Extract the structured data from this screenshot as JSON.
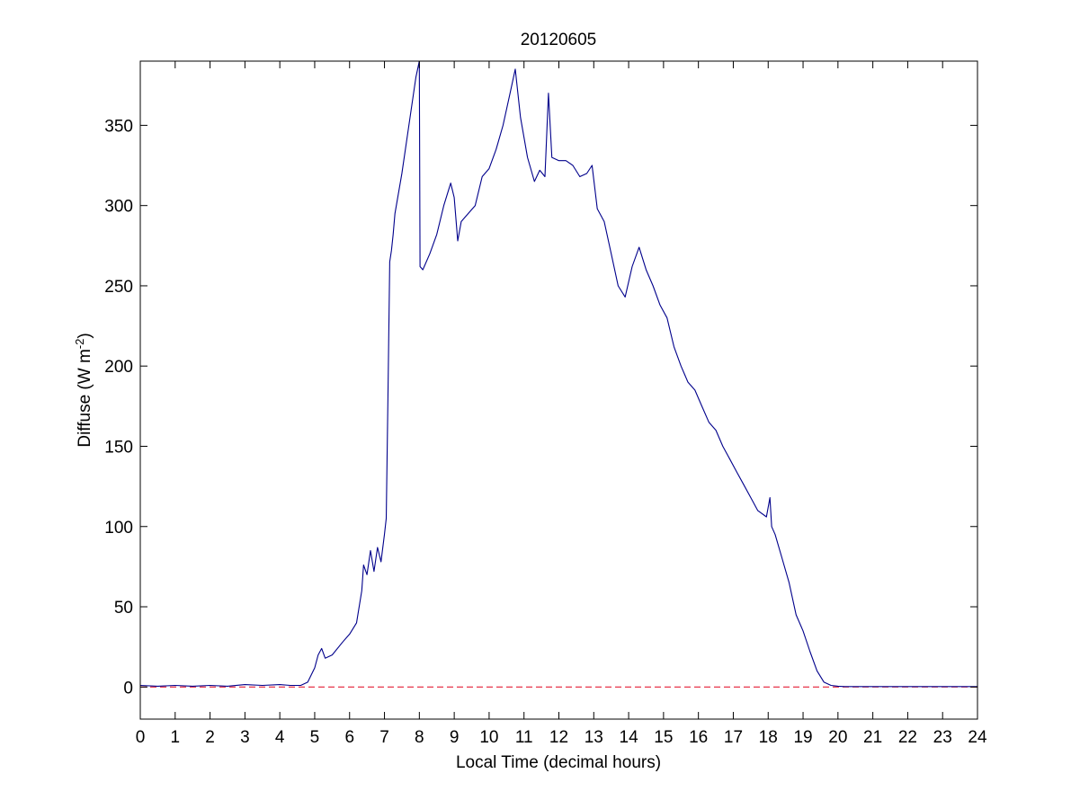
{
  "chart_data": {
    "type": "line",
    "title": "20120605",
    "xlabel": "Local Time (decimal hours)",
    "ylabel_main": "Diffuse (W m",
    "ylabel_exp": "-2",
    "ylabel_close": ")",
    "xlim": [
      0,
      24
    ],
    "ylim": [
      -20,
      390
    ],
    "xticks": [
      0,
      1,
      2,
      3,
      4,
      5,
      6,
      7,
      8,
      9,
      10,
      11,
      12,
      13,
      14,
      15,
      16,
      17,
      18,
      19,
      20,
      21,
      22,
      23,
      24
    ],
    "yticks": [
      0,
      50,
      100,
      150,
      200,
      250,
      300,
      350
    ],
    "grid": false,
    "series": [
      {
        "color": "#00008b",
        "x": [
          0.0,
          0.5,
          1.0,
          1.5,
          2.0,
          2.5,
          3.0,
          3.5,
          4.0,
          4.3,
          4.6,
          4.8,
          5.0,
          5.1,
          5.2,
          5.3,
          5.5,
          5.8,
          6.0,
          6.2,
          6.35,
          6.4,
          6.5,
          6.6,
          6.7,
          6.8,
          6.9,
          7.0,
          7.05,
          7.1,
          7.15,
          7.2,
          7.25,
          7.3,
          7.5,
          7.7,
          7.9,
          8.0,
          8.02,
          8.1,
          8.3,
          8.5,
          8.7,
          8.9,
          9.0,
          9.1,
          9.2,
          9.4,
          9.6,
          9.8,
          10.0,
          10.2,
          10.4,
          10.6,
          10.75,
          10.9,
          11.1,
          11.3,
          11.45,
          11.6,
          11.7,
          11.8,
          12.0,
          12.2,
          12.4,
          12.6,
          12.8,
          12.95,
          13.1,
          13.3,
          13.5,
          13.7,
          13.9,
          14.1,
          14.3,
          14.5,
          14.7,
          14.9,
          15.1,
          15.3,
          15.5,
          15.7,
          15.9,
          16.1,
          16.3,
          16.5,
          16.7,
          16.9,
          17.1,
          17.3,
          17.5,
          17.7,
          17.95,
          18.05,
          18.1,
          18.2,
          18.4,
          18.6,
          18.8,
          19.0,
          19.2,
          19.4,
          19.6,
          19.8,
          20.0,
          20.2,
          20.5,
          21.0,
          22.0,
          23.0,
          24.0
        ],
        "y": [
          1,
          0.5,
          1,
          0.5,
          1,
          0.5,
          1.5,
          1,
          1.5,
          1,
          1,
          3,
          12,
          20,
          24,
          18,
          20,
          28,
          33,
          40,
          60,
          76,
          70,
          85,
          72,
          87,
          78,
          95,
          105,
          180,
          265,
          272,
          282,
          295,
          320,
          350,
          380,
          390,
          262,
          260,
          270,
          282,
          300,
          314,
          305,
          278,
          290,
          295,
          300,
          318,
          323,
          335,
          350,
          370,
          385,
          355,
          330,
          315,
          322,
          318,
          370,
          330,
          328,
          328,
          325,
          318,
          320,
          325,
          298,
          290,
          270,
          250,
          243,
          262,
          274,
          260,
          250,
          238,
          230,
          212,
          200,
          190,
          185,
          175,
          165,
          160,
          150,
          142,
          134,
          126,
          118,
          110,
          106,
          118,
          100,
          95,
          80,
          65,
          45,
          35,
          22,
          10,
          3,
          1,
          0.5,
          0.3,
          0.3,
          0.3,
          0.3,
          0.3,
          0.3
        ]
      }
    ],
    "reference_line": {
      "y": 0,
      "style": "dashed",
      "color": "#e0001b"
    }
  }
}
